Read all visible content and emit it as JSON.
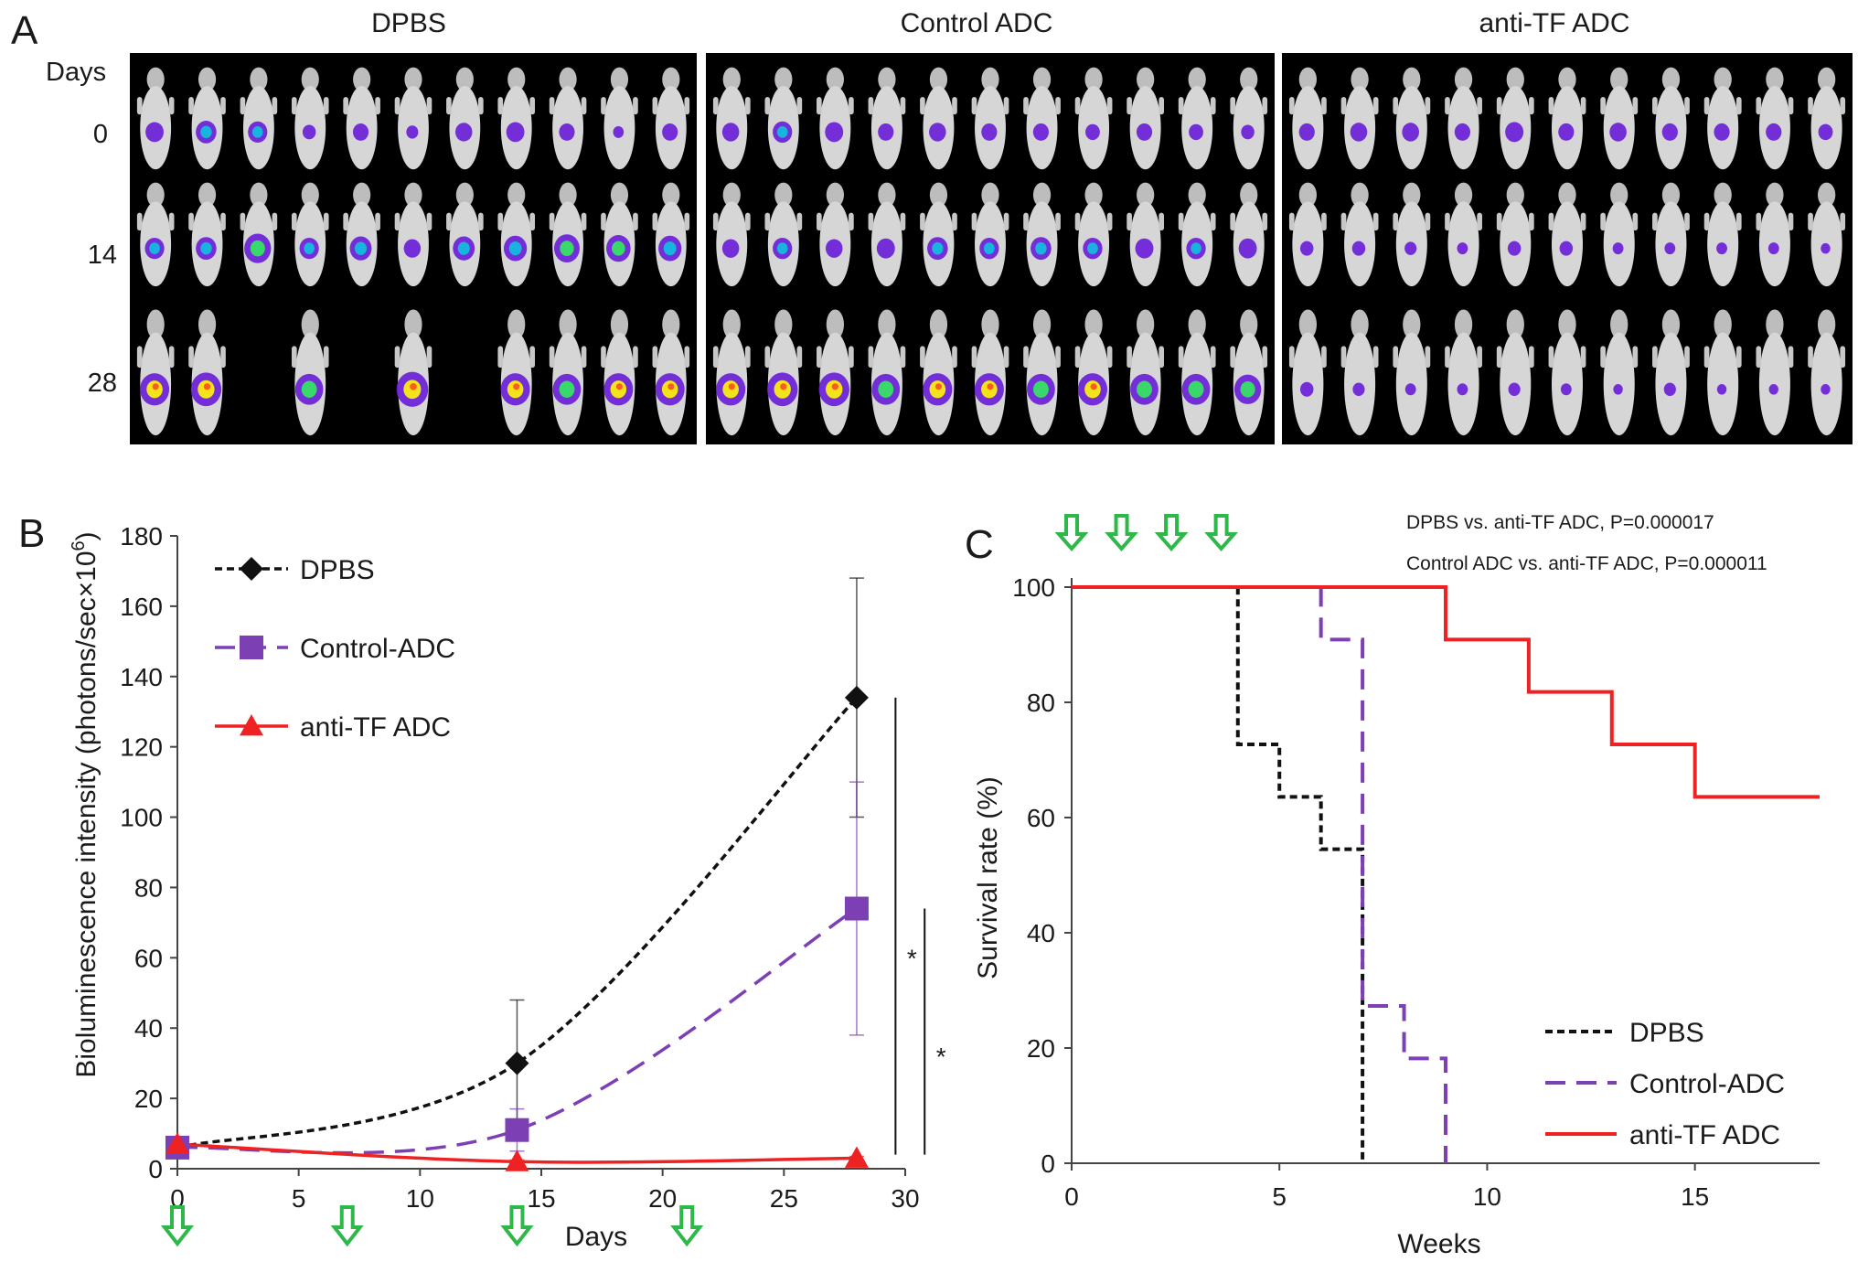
{
  "panel_a": {
    "letter": "A",
    "days_header": "Days",
    "row_labels": [
      "0",
      "14",
      "28"
    ],
    "groups": [
      {
        "title": "DPBS",
        "mice_present_day28": [
          1,
          1,
          0,
          1,
          0,
          1,
          0,
          1,
          1,
          1,
          1
        ],
        "day0_signal": [
          0.4,
          0.5,
          0.45,
          0.2,
          0.3,
          0.15,
          0.35,
          0.4,
          0.3,
          0.1,
          0.3
        ],
        "day14_signal": [
          0.45,
          0.5,
          0.75,
          0.45,
          0.55,
          0.35,
          0.55,
          0.6,
          0.7,
          0.65,
          0.6
        ],
        "day28_signal": [
          0.85,
          0.9,
          0,
          0.8,
          0,
          0.95,
          0,
          0.85,
          0.8,
          0.85,
          0.85
        ]
      },
      {
        "title": "Control ADC",
        "mice_present_day28": [
          1,
          1,
          1,
          1,
          1,
          1,
          1,
          1,
          1,
          1,
          1
        ],
        "day0_signal": [
          0.35,
          0.45,
          0.4,
          0.3,
          0.35,
          0.3,
          0.3,
          0.25,
          0.3,
          0.25,
          0.2
        ],
        "day14_signal": [
          0.35,
          0.45,
          0.35,
          0.4,
          0.5,
          0.45,
          0.5,
          0.45,
          0.4,
          0.45,
          0.4
        ],
        "day28_signal": [
          0.85,
          0.9,
          0.9,
          0.8,
          0.85,
          0.85,
          0.8,
          0.85,
          0.8,
          0.8,
          0.75
        ]
      },
      {
        "title": "anti-TF ADC",
        "mice_present_day28": [
          1,
          1,
          1,
          1,
          1,
          1,
          1,
          1,
          1,
          1,
          1
        ],
        "day0_signal": [
          0.3,
          0.35,
          0.35,
          0.3,
          0.4,
          0.3,
          0.35,
          0.3,
          0.3,
          0.3,
          0.25
        ],
        "day14_signal": [
          0.2,
          0.2,
          0.15,
          0.1,
          0.2,
          0.2,
          0.1,
          0.1,
          0.1,
          0.1,
          0.05
        ],
        "day28_signal": [
          0.2,
          0.15,
          0.1,
          0.1,
          0.15,
          0.1,
          0.05,
          0.15,
          0.05,
          0.05,
          0.05
        ]
      }
    ]
  },
  "chart_data": [
    {
      "type": "line",
      "panel": "B",
      "xlabel": "Days",
      "ylabel": "Bioluminescence intensity (photons/sec×10⁶)",
      "ylabel_main": "Bioluminescence intensity (photons/sec×10",
      "ylabel_sup": "6",
      "ylabel_close": ")",
      "xlim": [
        0,
        30
      ],
      "ylim": [
        0,
        180
      ],
      "x_ticks": [
        0,
        5,
        10,
        15,
        20,
        25,
        30
      ],
      "y_ticks": [
        0,
        20,
        40,
        60,
        80,
        100,
        120,
        140,
        160,
        180
      ],
      "x": [
        0,
        14,
        28
      ],
      "series": [
        {
          "name": "DPBS",
          "values": [
            6,
            30,
            134
          ],
          "err_upper": [
            1,
            18,
            34
          ],
          "err_lower": [
            1,
            18,
            34
          ],
          "color": "#111111",
          "marker": "diamond",
          "dash": "dotted"
        },
        {
          "name": "Control-ADC",
          "values": [
            6,
            11,
            74
          ],
          "err_upper": [
            1,
            6,
            36
          ],
          "err_lower": [
            1,
            6,
            36
          ],
          "color": "#7d3fb4",
          "marker": "square",
          "dash": "dashed"
        },
        {
          "name": "anti-TF ADC",
          "values": [
            7,
            2,
            3
          ],
          "err_upper": [
            1,
            0.5,
            0.5
          ],
          "err_lower": [
            1,
            0.5,
            0.5
          ],
          "color": "#ee2222",
          "marker": "triangle",
          "dash": "solid"
        }
      ],
      "dose_days": [
        0,
        7,
        14,
        21
      ],
      "significance": [
        "*",
        "*"
      ],
      "legend_position": "top-left",
      "grid": false
    },
    {
      "type": "line",
      "panel": "C",
      "step": true,
      "xlabel": "Weeks",
      "ylabel": "Survival rate (%)",
      "xlim": [
        0,
        18
      ],
      "ylim": [
        0,
        100
      ],
      "x_ticks": [
        0,
        5,
        10,
        15
      ],
      "y_ticks": [
        0,
        20,
        40,
        60,
        80,
        100
      ],
      "series": [
        {
          "name": "DPBS",
          "x": [
            0,
            4,
            5,
            6,
            7
          ],
          "values": [
            100,
            72.7,
            63.6,
            54.5,
            0
          ],
          "end_x": 7,
          "color": "#111111",
          "dash": "dotted"
        },
        {
          "name": "Control-ADC",
          "x": [
            0,
            6,
            7,
            8,
            9
          ],
          "values": [
            100,
            90.9,
            27.3,
            18.2,
            0
          ],
          "end_x": 9,
          "color": "#7d3fb4",
          "dash": "dashed"
        },
        {
          "name": "anti-TF ADC",
          "x": [
            0,
            9,
            11,
            13,
            15
          ],
          "values": [
            100,
            90.9,
            81.8,
            72.7,
            63.6
          ],
          "end_x": 18,
          "color": "#ee2222",
          "dash": "solid"
        }
      ],
      "dose_weeks": [
        0,
        1.2,
        2.4,
        3.6
      ],
      "annotations": [
        "DPBS vs. anti-TF ADC, P=0.000017",
        "Control ADC vs. anti-TF ADC, P=0.000011"
      ],
      "legend_position": "bottom-right",
      "grid": false
    }
  ],
  "panel_labels": {
    "b": "B",
    "c": "C"
  },
  "colors": {
    "dose_arrow": "#2fb84a",
    "panel_bg": "#000000"
  }
}
